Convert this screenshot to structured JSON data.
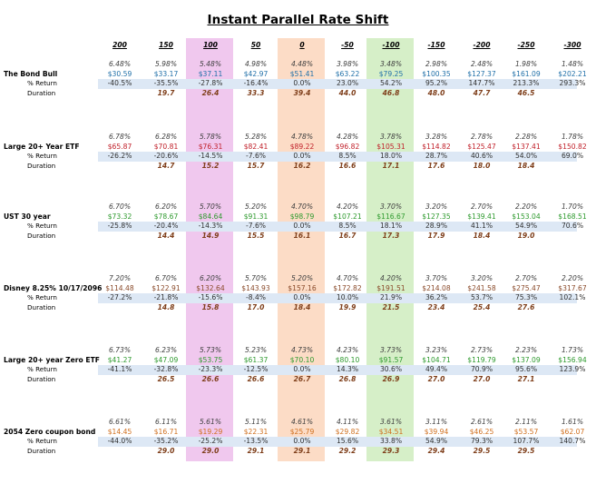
{
  "title": "Instant Parallel Rate Shift",
  "columns": [
    "200",
    "150",
    "100",
    "50",
    "0",
    "-50",
    "-100",
    "-150",
    "-200",
    "-250",
    "-300"
  ],
  "colors": {
    "highlight_100": "#f0c8ee",
    "highlight_0": "#fcdcc6",
    "highlight_minus100": "#d6efc8",
    "band": "#dde8f5",
    "price_blue": "#1f6fa8",
    "price_red": "#c0202a",
    "price_green": "#2e9a2e",
    "price_brown": "#8a4a2a",
    "price_orange": "#d0701f",
    "duration": "#7f3f1b"
  },
  "sections": [
    {
      "name": "The Bond Bull",
      "return_label": "% Return",
      "duration_label": "Duration",
      "price_color": "#1f6fa8",
      "yields": [
        "6.48%",
        "5.98%",
        "5.48%",
        "4.98%",
        "4.48%",
        "3.98%",
        "3.48%",
        "2.98%",
        "2.48%",
        "1.98%",
        "1.48%"
      ],
      "prices": [
        "$30.59",
        "$33.17",
        "$37.11",
        "$42.97",
        "$51.41",
        "$63.22",
        "$79.25",
        "$100.35",
        "$127.37",
        "$161.09",
        "$202.21"
      ],
      "returns": [
        "-40.5%",
        "-35.5%",
        "-27.8%",
        "-16.4%",
        "0.0%",
        "23.0%",
        "54.2%",
        "95.2%",
        "147.7%",
        "213.3%",
        "293.3%"
      ],
      "durations": [
        "",
        "19.7",
        "26.4",
        "33.3",
        "39.4",
        "44.0",
        "46.8",
        "48.0",
        "47.7",
        "46.5",
        ""
      ]
    },
    {
      "name": "Large 20+ Year ETF",
      "return_label": "% Return",
      "duration_label": "Duration",
      "price_color": "#c0202a",
      "yields": [
        "6.78%",
        "6.28%",
        "5.78%",
        "5.28%",
        "4.78%",
        "4.28%",
        "3.78%",
        "3.28%",
        "2.78%",
        "2.28%",
        "1.78%"
      ],
      "prices": [
        "$65.87",
        "$70.81",
        "$76.31",
        "$82.41",
        "$89.22",
        "$96.82",
        "$105.31",
        "$114.82",
        "$125.47",
        "$137.41",
        "$150.82"
      ],
      "returns": [
        "-26.2%",
        "-20.6%",
        "-14.5%",
        "-7.6%",
        "0.0%",
        "8.5%",
        "18.0%",
        "28.7%",
        "40.6%",
        "54.0%",
        "69.0%"
      ],
      "durations": [
        "",
        "14.7",
        "15.2",
        "15.7",
        "16.2",
        "16.6",
        "17.1",
        "17.6",
        "18.0",
        "18.4",
        ""
      ]
    },
    {
      "name": "UST 30 year",
      "return_label": "% Return",
      "duration_label": "Duration",
      "price_color": "#2e9a2e",
      "yields": [
        "6.70%",
        "6.20%",
        "5.70%",
        "5.20%",
        "4.70%",
        "4.20%",
        "3.70%",
        "3.20%",
        "2.70%",
        "2.20%",
        "1.70%"
      ],
      "prices": [
        "$73.32",
        "$78.67",
        "$84.64",
        "$91.31",
        "$98.79",
        "$107.21",
        "$116.67",
        "$127.35",
        "$139.41",
        "$153.04",
        "$168.51"
      ],
      "returns": [
        "-25.8%",
        "-20.4%",
        "-14.3%",
        "-7.6%",
        "0.0%",
        "8.5%",
        "18.1%",
        "28.9%",
        "41.1%",
        "54.9%",
        "70.6%"
      ],
      "durations": [
        "",
        "14.4",
        "14.9",
        "15.5",
        "16.1",
        "16.7",
        "17.3",
        "17.9",
        "18.4",
        "19.0",
        ""
      ]
    },
    {
      "name": "Disney 8.25% 10/17/2096",
      "return_label": "% Return",
      "duration_label": "Duration",
      "price_color": "#8a4a2a",
      "yields": [
        "7.20%",
        "6.70%",
        "6.20%",
        "5.70%",
        "5.20%",
        "4.70%",
        "4.20%",
        "3.70%",
        "3.20%",
        "2.70%",
        "2.20%"
      ],
      "prices": [
        "$114.48",
        "$122.91",
        "$132.64",
        "$143.93",
        "$157.16",
        "$172.82",
        "$191.51",
        "$214.08",
        "$241.58",
        "$275.47",
        "$317.67"
      ],
      "returns": [
        "-27.2%",
        "-21.8%",
        "-15.6%",
        "-8.4%",
        "0.0%",
        "10.0%",
        "21.9%",
        "36.2%",
        "53.7%",
        "75.3%",
        "102.1%"
      ],
      "durations": [
        "",
        "14.8",
        "15.8",
        "17.0",
        "18.4",
        "19.9",
        "21.5",
        "23.4",
        "25.4",
        "27.6",
        ""
      ]
    },
    {
      "name": "Large 20+ year Zero ETF",
      "return_label": "% Return",
      "duration_label": "Duration",
      "price_color": "#2e9a2e",
      "yields": [
        "6.73%",
        "6.23%",
        "5.73%",
        "5.23%",
        "4.73%",
        "4.23%",
        "3.73%",
        "3.23%",
        "2.73%",
        "2.23%",
        "1.73%"
      ],
      "prices": [
        "$41.27",
        "$47.09",
        "$53.75",
        "$61.37",
        "$70.10",
        "$80.10",
        "$91.57",
        "$104.71",
        "$119.79",
        "$137.09",
        "$156.94"
      ],
      "returns": [
        "-41.1%",
        "-32.8%",
        "-23.3%",
        "-12.5%",
        "0.0%",
        "14.3%",
        "30.6%",
        "49.4%",
        "70.9%",
        "95.6%",
        "123.9%"
      ],
      "durations": [
        "",
        "26.5",
        "26.6",
        "26.6",
        "26.7",
        "26.8",
        "26.9",
        "27.0",
        "27.0",
        "27.1",
        ""
      ]
    },
    {
      "name": "2054 Zero coupon bond",
      "return_label": "% Return",
      "duration_label": "Duration",
      "price_color": "#d0701f",
      "yields": [
        "6.61%",
        "6.11%",
        "5.61%",
        "5.11%",
        "4.61%",
        "4.11%",
        "3.61%",
        "3.11%",
        "2.61%",
        "2.11%",
        "1.61%"
      ],
      "prices": [
        "$14.45",
        "$16.71",
        "$19.29",
        "$22.31",
        "$25.79",
        "$29.82",
        "$34.51",
        "$39.94",
        "$46.25",
        "$53.57",
        "$62.07"
      ],
      "returns": [
        "-44.0%",
        "-35.2%",
        "-25.2%",
        "-13.5%",
        "0.0%",
        "15.6%",
        "33.8%",
        "54.9%",
        "79.3%",
        "107.7%",
        "140.7%"
      ],
      "durations": [
        "",
        "29.0",
        "29.0",
        "29.1",
        "29.1",
        "29.2",
        "29.3",
        "29.4",
        "29.5",
        "29.5",
        ""
      ]
    }
  ]
}
